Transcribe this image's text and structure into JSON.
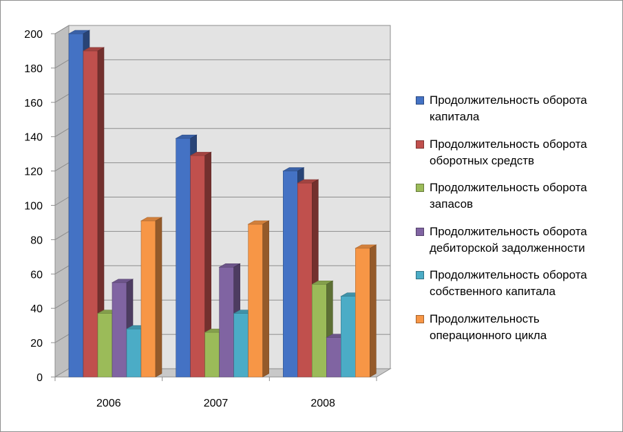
{
  "chart_data": {
    "type": "bar",
    "categories": [
      "2006",
      "2007",
      "2008"
    ],
    "ylim": [
      0,
      200
    ],
    "yticks": [
      0,
      20,
      40,
      60,
      80,
      100,
      120,
      140,
      160,
      180,
      200
    ],
    "grid": true,
    "legend_position": "right",
    "series": [
      {
        "name": "Продолжительность оборота капитала",
        "color": "#4472c4",
        "values": [
          200,
          139,
          120
        ]
      },
      {
        "name": "Продолжительность оборота оборотных средств",
        "color": "#c0504d",
        "values": [
          190,
          129,
          113
        ]
      },
      {
        "name": "Продолжительность оборота запасов",
        "color": "#9bbb59",
        "values": [
          37,
          26,
          54
        ]
      },
      {
        "name": "Продолжительность оборота дебиторской задолженности",
        "color": "#8064a2",
        "values": [
          55,
          64,
          23
        ]
      },
      {
        "name": "Продолжительность оборота собственного капитала",
        "color": "#4bacc6",
        "values": [
          28,
          37,
          47
        ]
      },
      {
        "name": "Продолжительность операционного цикла",
        "color": "#f79646",
        "values": [
          91,
          89,
          75
        ]
      }
    ]
  }
}
